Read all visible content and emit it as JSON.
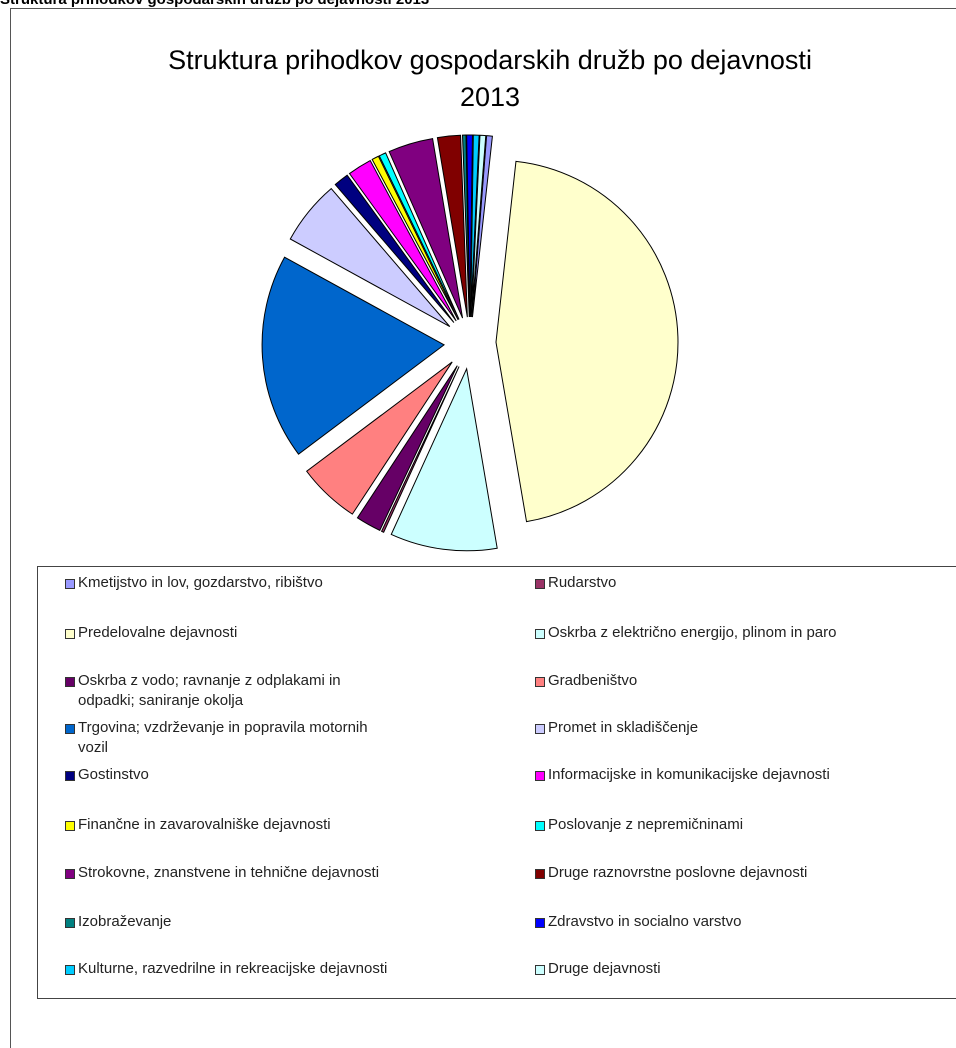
{
  "page_heading": "Struktura prihodkov gospodarskih družb po dejavnosti 2013",
  "chart_data": {
    "type": "pie",
    "title": "Struktura prihodkov gospodarskih družb po dejavnosti 2013",
    "legend_position": "bottom",
    "slice_order": "clockwise from top",
    "categories": [
      "Kmetijstvo in lov, gozdarstvo, ribištvo",
      "Rudarstvo",
      "Predelovalne dejavnosti",
      "Oskrba z električno energijo, plinom in paro",
      "Oskrba z vodo; ravnanje z odplakami in odpadki; saniranje okolja",
      "Gradbeništvo",
      "Trgovina; vzdrževanje in popravila motornih vozil",
      "Promet in skladiščenje",
      "Gostinstvo",
      "Informacijske in komunikacijske dejavnosti",
      "Finančne in zavarovalniške dejavnosti",
      "Poslovanje z nepremičninami",
      "Strokovne, znanstvene in tehnične dejavnosti",
      "Druge raznovrstne poslovne dejavnosti",
      "Izobraževanje",
      "Zdravstvo in socialno varstvo",
      "Kulturne, razvedrilne in rekreacijske dejavnosti",
      "Druge dejavnosti"
    ],
    "colors": [
      "#9999ff",
      "#993366",
      "#ffffcc",
      "#ccffff",
      "#660066",
      "#ff8080",
      "#0066cc",
      "#ccccff",
      "#000080",
      "#ff00ff",
      "#ffff00",
      "#00ffff",
      "#800080",
      "#800000",
      "#008080",
      "#0000ff",
      "#00ccff",
      "#ccffff"
    ],
    "values": [
      0.5,
      0.2,
      44.7,
      9.3,
      2.2,
      5.4,
      17.9,
      5.6,
      1.3,
      2.1,
      0.6,
      0.6,
      3.9,
      2.0,
      0.3,
      0.5,
      0.5,
      0.5
    ],
    "slices_in_draw_order": [
      2,
      3,
      1,
      4,
      5,
      6,
      7,
      8,
      9,
      10,
      11,
      12,
      13,
      14,
      15,
      16,
      17,
      0
    ]
  },
  "legend": {
    "items": [
      "Kmetijstvo in lov, gozdarstvo, ribištvo",
      "Rudarstvo",
      "Predelovalne dejavnosti",
      "Oskrba z električno energijo, plinom in paro",
      "Oskrba z vodo; ravnanje z odplakami in odpadki; saniranje okolja",
      "Gradbeništvo",
      "Trgovina; vzdrževanje in popravila motornih vozil",
      "Promet in skladiščenje",
      "Gostinstvo",
      "Informacijske in komunikacijske dejavnosti",
      "Finančne in zavarovalniške dejavnosti",
      "Poslovanje z nepremičninami",
      "Strokovne, znanstvene in tehnične dejavnosti",
      "Druge raznovrstne poslovne dejavnosti",
      "Izobraževanje",
      "Zdravstvo in socialno varstvo",
      "Kulturne, razvedrilne in rekreacijske dejavnosti",
      "Druge dejavnosti"
    ]
  }
}
